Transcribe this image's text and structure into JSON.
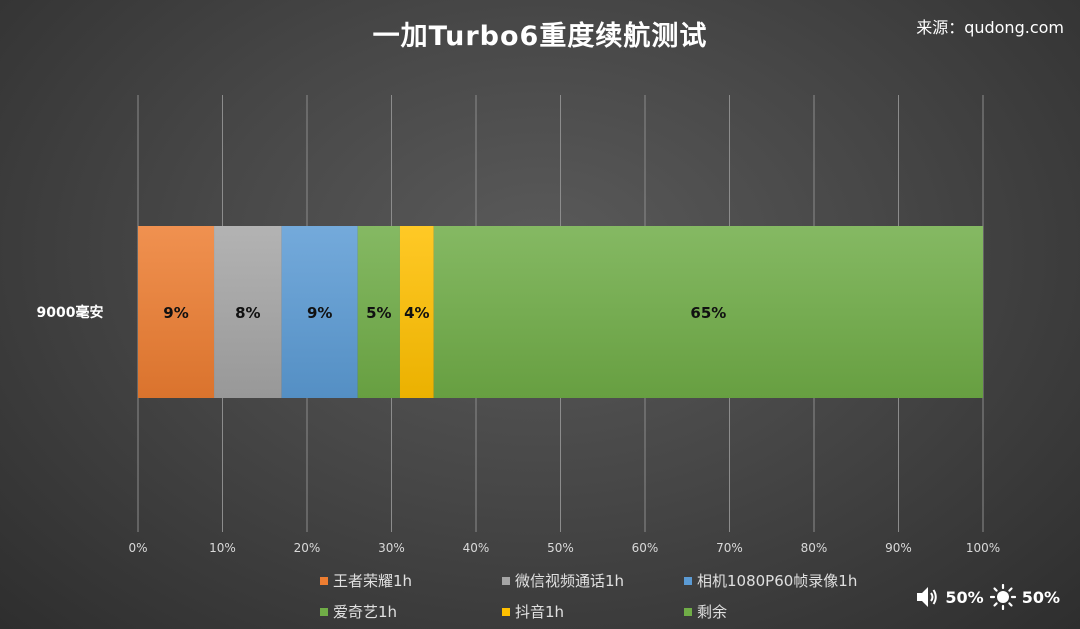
{
  "title": "一加Turbo6重度续航测试",
  "source": "来源：qudong.com",
  "status": {
    "volume_icon": "speaker-icon",
    "volume": "50%",
    "brightness_icon": "sun-icon",
    "brightness": "50%"
  },
  "chart_data": {
    "type": "bar",
    "orientation": "horizontal",
    "stacked": true,
    "categories": [
      "9000毫安"
    ],
    "xlim": [
      0,
      100
    ],
    "x_ticks": [
      "0%",
      "10%",
      "20%",
      "30%",
      "40%",
      "50%",
      "60%",
      "70%",
      "80%",
      "90%",
      "100%"
    ],
    "grid": true,
    "legend_position": "bottom",
    "series": [
      {
        "name": "王者荣耀1h",
        "values": [
          9
        ],
        "label": "9%",
        "color": "#ed7d31"
      },
      {
        "name": "微信视频通话1h",
        "values": [
          8
        ],
        "label": "8%",
        "color": "#a5a5a5"
      },
      {
        "name": "相机1080P60帧录像1h",
        "values": [
          9
        ],
        "label": "9%",
        "color": "#5b9bd5"
      },
      {
        "name": "爱奇艺1h",
        "values": [
          5
        ],
        "label": "5%",
        "color": "#70ad47"
      },
      {
        "name": "抖音1h",
        "values": [
          4
        ],
        "label": "4%",
        "color": "#ffc000"
      },
      {
        "name": "剩余",
        "values": [
          65
        ],
        "label": "65%",
        "color": "#70ad47"
      }
    ]
  }
}
